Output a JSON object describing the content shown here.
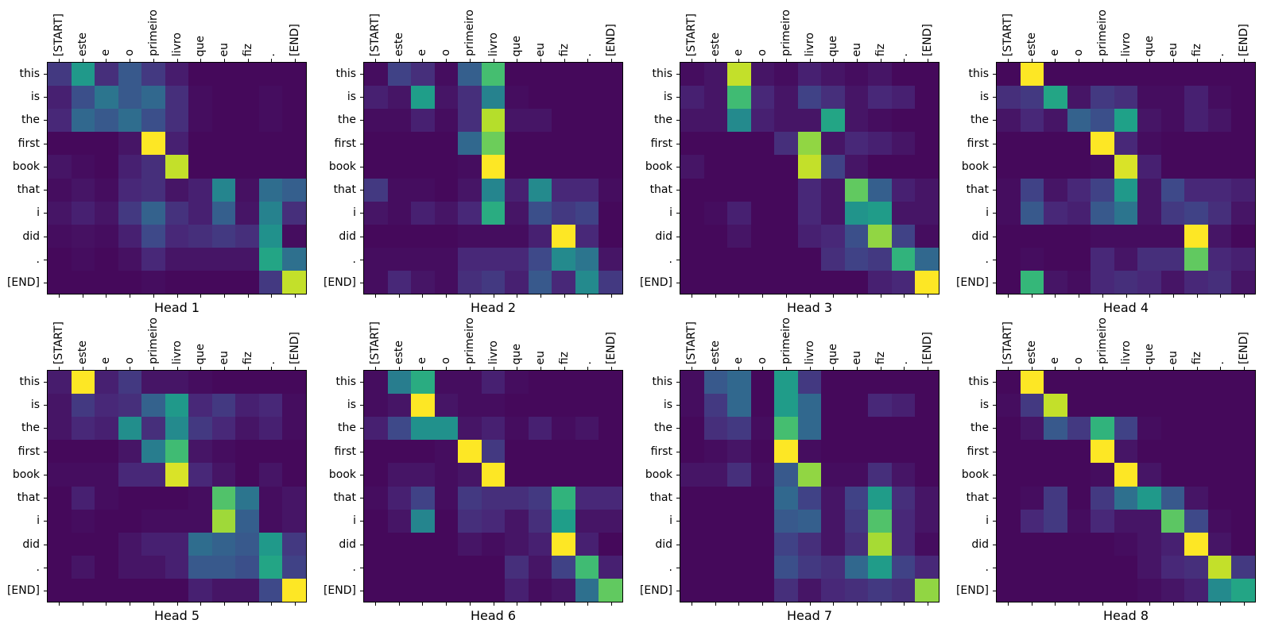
{
  "figure": {
    "background": "#ffffff",
    "axis_color": "#000000"
  },
  "chart_data": {
    "type": "heatmap",
    "colormap": "viridis",
    "colormap_stops": [
      "#440154",
      "#482878",
      "#3e4989",
      "#31688e",
      "#26828e",
      "#21918c",
      "#1fa188",
      "#35b779",
      "#6ccd5a",
      "#b5de2b",
      "#fde725"
    ],
    "value_range": [
      0,
      1
    ],
    "grid": false,
    "x_labels": [
      "[START]",
      "este",
      "e",
      "o",
      "primeiro",
      "livro",
      "que",
      "eu",
      "fiz",
      ".",
      "[END]"
    ],
    "y_labels": [
      "this",
      "is",
      "the",
      "first",
      "book",
      "that",
      "i",
      "did",
      ".",
      "[END]"
    ],
    "heads": [
      {
        "title": "Head 1",
        "values": [
          [
            0.15,
            0.55,
            0.12,
            0.25,
            0.15,
            0.07,
            0.02,
            0.02,
            0.02,
            0.02,
            0.02
          ],
          [
            0.08,
            0.22,
            0.35,
            0.25,
            0.3,
            0.12,
            0.03,
            0.02,
            0.02,
            0.03,
            0.02
          ],
          [
            0.1,
            0.3,
            0.25,
            0.32,
            0.22,
            0.12,
            0.03,
            0.02,
            0.02,
            0.03,
            0.02
          ],
          [
            0.02,
            0.02,
            0.02,
            0.05,
            1.0,
            0.08,
            0.02,
            0.02,
            0.02,
            0.02,
            0.02
          ],
          [
            0.05,
            0.03,
            0.02,
            0.08,
            0.12,
            0.92,
            0.02,
            0.02,
            0.02,
            0.02,
            0.02
          ],
          [
            0.03,
            0.05,
            0.03,
            0.1,
            0.12,
            0.05,
            0.08,
            0.42,
            0.04,
            0.32,
            0.27
          ],
          [
            0.05,
            0.08,
            0.05,
            0.15,
            0.28,
            0.13,
            0.08,
            0.27,
            0.05,
            0.4,
            0.12
          ],
          [
            0.03,
            0.04,
            0.03,
            0.08,
            0.2,
            0.1,
            0.12,
            0.15,
            0.12,
            0.5,
            0.03
          ],
          [
            0.02,
            0.03,
            0.02,
            0.04,
            0.1,
            0.05,
            0.05,
            0.05,
            0.05,
            0.62,
            0.33
          ],
          [
            0.02,
            0.02,
            0.02,
            0.02,
            0.03,
            0.02,
            0.02,
            0.02,
            0.02,
            0.15,
            0.92
          ]
        ]
      },
      {
        "title": "Head 2",
        "values": [
          [
            0.03,
            0.18,
            0.12,
            0.03,
            0.27,
            0.73,
            0.02,
            0.02,
            0.02,
            0.02,
            0.02
          ],
          [
            0.08,
            0.05,
            0.58,
            0.05,
            0.12,
            0.4,
            0.03,
            0.02,
            0.02,
            0.02,
            0.02
          ],
          [
            0.03,
            0.03,
            0.08,
            0.03,
            0.12,
            0.9,
            0.05,
            0.05,
            0.02,
            0.02,
            0.02
          ],
          [
            0.02,
            0.02,
            0.02,
            0.02,
            0.3,
            0.8,
            0.02,
            0.02,
            0.02,
            0.02,
            0.02
          ],
          [
            0.02,
            0.02,
            0.02,
            0.02,
            0.03,
            1.0,
            0.02,
            0.02,
            0.02,
            0.02,
            0.02
          ],
          [
            0.15,
            0.03,
            0.03,
            0.02,
            0.05,
            0.42,
            0.08,
            0.45,
            0.1,
            0.1,
            0.03
          ],
          [
            0.05,
            0.03,
            0.08,
            0.05,
            0.1,
            0.65,
            0.05,
            0.22,
            0.15,
            0.18,
            0.02
          ],
          [
            0.02,
            0.02,
            0.02,
            0.02,
            0.03,
            0.03,
            0.03,
            0.08,
            1.0,
            0.1,
            0.02
          ],
          [
            0.03,
            0.03,
            0.03,
            0.03,
            0.1,
            0.1,
            0.1,
            0.2,
            0.45,
            0.35,
            0.05
          ],
          [
            0.03,
            0.1,
            0.05,
            0.03,
            0.12,
            0.15,
            0.08,
            0.25,
            0.1,
            0.45,
            0.15
          ]
        ]
      },
      {
        "title": "Head 3",
        "values": [
          [
            0.03,
            0.05,
            0.92,
            0.05,
            0.03,
            0.08,
            0.05,
            0.03,
            0.05,
            0.02,
            0.02
          ],
          [
            0.08,
            0.05,
            0.72,
            0.1,
            0.05,
            0.18,
            0.12,
            0.05,
            0.1,
            0.08,
            0.02
          ],
          [
            0.05,
            0.05,
            0.45,
            0.08,
            0.05,
            0.05,
            0.62,
            0.05,
            0.03,
            0.02,
            0.02
          ],
          [
            0.02,
            0.02,
            0.02,
            0.02,
            0.12,
            0.85,
            0.05,
            0.1,
            0.08,
            0.05,
            0.02
          ],
          [
            0.05,
            0.02,
            0.02,
            0.02,
            0.02,
            0.92,
            0.18,
            0.05,
            0.02,
            0.02,
            0.02
          ],
          [
            0.02,
            0.02,
            0.02,
            0.02,
            0.02,
            0.1,
            0.05,
            0.78,
            0.27,
            0.08,
            0.05
          ],
          [
            0.02,
            0.03,
            0.08,
            0.02,
            0.02,
            0.1,
            0.05,
            0.52,
            0.57,
            0.05,
            0.05
          ],
          [
            0.02,
            0.02,
            0.05,
            0.02,
            0.02,
            0.08,
            0.1,
            0.22,
            0.85,
            0.18,
            0.03
          ],
          [
            0.02,
            0.02,
            0.02,
            0.02,
            0.02,
            0.02,
            0.12,
            0.18,
            0.15,
            0.68,
            0.3
          ],
          [
            0.02,
            0.02,
            0.02,
            0.02,
            0.02,
            0.02,
            0.02,
            0.02,
            0.08,
            0.1,
            1.0
          ]
        ]
      },
      {
        "title": "Head 4",
        "values": [
          [
            0.02,
            1.0,
            0.02,
            0.02,
            0.02,
            0.02,
            0.02,
            0.02,
            0.02,
            0.02,
            0.02
          ],
          [
            0.12,
            0.15,
            0.62,
            0.05,
            0.15,
            0.12,
            0.03,
            0.03,
            0.08,
            0.03,
            0.02
          ],
          [
            0.05,
            0.1,
            0.05,
            0.28,
            0.22,
            0.6,
            0.05,
            0.03,
            0.08,
            0.05,
            0.02
          ],
          [
            0.02,
            0.02,
            0.02,
            0.02,
            1.0,
            0.1,
            0.03,
            0.02,
            0.02,
            0.02,
            0.02
          ],
          [
            0.02,
            0.02,
            0.02,
            0.02,
            0.03,
            0.95,
            0.08,
            0.02,
            0.02,
            0.02,
            0.02
          ],
          [
            0.03,
            0.18,
            0.05,
            0.1,
            0.18,
            0.55,
            0.05,
            0.2,
            0.1,
            0.1,
            0.08
          ],
          [
            0.03,
            0.25,
            0.1,
            0.08,
            0.25,
            0.35,
            0.05,
            0.15,
            0.18,
            0.12,
            0.05
          ],
          [
            0.02,
            0.02,
            0.02,
            0.02,
            0.03,
            0.03,
            0.03,
            0.03,
            1.0,
            0.05,
            0.02
          ],
          [
            0.02,
            0.03,
            0.02,
            0.02,
            0.1,
            0.05,
            0.12,
            0.12,
            0.78,
            0.1,
            0.08
          ],
          [
            0.02,
            0.7,
            0.05,
            0.03,
            0.1,
            0.12,
            0.1,
            0.05,
            0.1,
            0.12,
            0.05
          ]
        ]
      },
      {
        "title": "Head 5",
        "values": [
          [
            0.07,
            1.0,
            0.08,
            0.15,
            0.05,
            0.05,
            0.03,
            0.02,
            0.02,
            0.02,
            0.02
          ],
          [
            0.05,
            0.15,
            0.1,
            0.12,
            0.28,
            0.55,
            0.1,
            0.15,
            0.08,
            0.1,
            0.03
          ],
          [
            0.05,
            0.1,
            0.08,
            0.48,
            0.12,
            0.45,
            0.15,
            0.1,
            0.05,
            0.08,
            0.03
          ],
          [
            0.02,
            0.02,
            0.02,
            0.05,
            0.38,
            0.72,
            0.05,
            0.03,
            0.02,
            0.02,
            0.02
          ],
          [
            0.03,
            0.03,
            0.03,
            0.1,
            0.1,
            0.95,
            0.1,
            0.05,
            0.02,
            0.05,
            0.02
          ],
          [
            0.02,
            0.08,
            0.03,
            0.02,
            0.02,
            0.02,
            0.03,
            0.75,
            0.35,
            0.03,
            0.05
          ],
          [
            0.02,
            0.03,
            0.02,
            0.02,
            0.03,
            0.03,
            0.03,
            0.87,
            0.27,
            0.03,
            0.05
          ],
          [
            0.02,
            0.02,
            0.02,
            0.05,
            0.08,
            0.08,
            0.32,
            0.28,
            0.25,
            0.55,
            0.15
          ],
          [
            0.02,
            0.05,
            0.02,
            0.05,
            0.05,
            0.08,
            0.25,
            0.25,
            0.22,
            0.62,
            0.18
          ],
          [
            0.02,
            0.02,
            0.02,
            0.02,
            0.02,
            0.02,
            0.08,
            0.05,
            0.05,
            0.2,
            1.0
          ]
        ]
      },
      {
        "title": "Head 6",
        "values": [
          [
            0.03,
            0.38,
            0.65,
            0.03,
            0.03,
            0.08,
            0.03,
            0.02,
            0.02,
            0.02,
            0.02
          ],
          [
            0.03,
            0.05,
            1.0,
            0.05,
            0.03,
            0.03,
            0.02,
            0.02,
            0.02,
            0.02,
            0.02
          ],
          [
            0.08,
            0.2,
            0.5,
            0.5,
            0.05,
            0.08,
            0.03,
            0.08,
            0.03,
            0.05,
            0.02
          ],
          [
            0.02,
            0.02,
            0.02,
            0.03,
            1.0,
            0.15,
            0.02,
            0.02,
            0.02,
            0.02,
            0.02
          ],
          [
            0.02,
            0.05,
            0.05,
            0.03,
            0.05,
            1.0,
            0.02,
            0.02,
            0.02,
            0.02,
            0.02
          ],
          [
            0.03,
            0.08,
            0.18,
            0.03,
            0.15,
            0.12,
            0.12,
            0.15,
            0.68,
            0.1,
            0.1
          ],
          [
            0.02,
            0.05,
            0.42,
            0.02,
            0.12,
            0.1,
            0.05,
            0.12,
            0.58,
            0.05,
            0.05
          ],
          [
            0.02,
            0.02,
            0.02,
            0.02,
            0.05,
            0.03,
            0.05,
            0.08,
            1.0,
            0.08,
            0.02
          ],
          [
            0.02,
            0.02,
            0.02,
            0.02,
            0.02,
            0.02,
            0.12,
            0.05,
            0.18,
            0.72,
            0.08
          ],
          [
            0.02,
            0.02,
            0.02,
            0.02,
            0.02,
            0.02,
            0.08,
            0.03,
            0.05,
            0.33,
            0.78
          ]
        ]
      },
      {
        "title": "Head 7",
        "values": [
          [
            0.03,
            0.25,
            0.3,
            0.02,
            0.57,
            0.15,
            0.02,
            0.02,
            0.02,
            0.02,
            0.02
          ],
          [
            0.03,
            0.15,
            0.3,
            0.02,
            0.57,
            0.3,
            0.02,
            0.02,
            0.1,
            0.08,
            0.02
          ],
          [
            0.02,
            0.12,
            0.15,
            0.03,
            0.73,
            0.3,
            0.02,
            0.02,
            0.02,
            0.02,
            0.02
          ],
          [
            0.02,
            0.03,
            0.05,
            0.02,
            1.0,
            0.03,
            0.02,
            0.02,
            0.02,
            0.02,
            0.02
          ],
          [
            0.05,
            0.05,
            0.12,
            0.03,
            0.25,
            0.85,
            0.03,
            0.03,
            0.12,
            0.05,
            0.02
          ],
          [
            0.02,
            0.02,
            0.02,
            0.02,
            0.3,
            0.18,
            0.05,
            0.18,
            0.57,
            0.12,
            0.05
          ],
          [
            0.02,
            0.02,
            0.02,
            0.02,
            0.25,
            0.27,
            0.05,
            0.15,
            0.75,
            0.1,
            0.05
          ],
          [
            0.02,
            0.02,
            0.02,
            0.02,
            0.18,
            0.12,
            0.05,
            0.12,
            0.88,
            0.1,
            0.03
          ],
          [
            0.02,
            0.02,
            0.02,
            0.02,
            0.22,
            0.15,
            0.12,
            0.3,
            0.57,
            0.18,
            0.1
          ],
          [
            0.02,
            0.02,
            0.02,
            0.02,
            0.12,
            0.05,
            0.1,
            0.12,
            0.15,
            0.12,
            0.85
          ]
        ]
      },
      {
        "title": "Head 8",
        "values": [
          [
            0.02,
            1.0,
            0.02,
            0.02,
            0.02,
            0.02,
            0.02,
            0.02,
            0.02,
            0.02,
            0.02
          ],
          [
            0.03,
            0.15,
            0.92,
            0.02,
            0.02,
            0.02,
            0.02,
            0.02,
            0.02,
            0.02,
            0.02
          ],
          [
            0.02,
            0.05,
            0.25,
            0.15,
            0.68,
            0.18,
            0.03,
            0.02,
            0.02,
            0.02,
            0.02
          ],
          [
            0.02,
            0.02,
            0.02,
            0.02,
            1.0,
            0.05,
            0.02,
            0.02,
            0.02,
            0.02,
            0.02
          ],
          [
            0.02,
            0.02,
            0.02,
            0.02,
            0.03,
            1.0,
            0.05,
            0.02,
            0.02,
            0.02,
            0.02
          ],
          [
            0.02,
            0.03,
            0.15,
            0.02,
            0.15,
            0.33,
            0.55,
            0.25,
            0.05,
            0.02,
            0.02
          ],
          [
            0.02,
            0.1,
            0.15,
            0.03,
            0.1,
            0.05,
            0.05,
            0.77,
            0.2,
            0.03,
            0.02
          ],
          [
            0.02,
            0.02,
            0.02,
            0.02,
            0.02,
            0.03,
            0.05,
            0.08,
            1.0,
            0.05,
            0.02
          ],
          [
            0.02,
            0.02,
            0.02,
            0.02,
            0.02,
            0.02,
            0.05,
            0.1,
            0.12,
            0.92,
            0.15
          ],
          [
            0.02,
            0.02,
            0.02,
            0.02,
            0.02,
            0.02,
            0.03,
            0.05,
            0.08,
            0.45,
            0.62
          ]
        ]
      }
    ]
  }
}
